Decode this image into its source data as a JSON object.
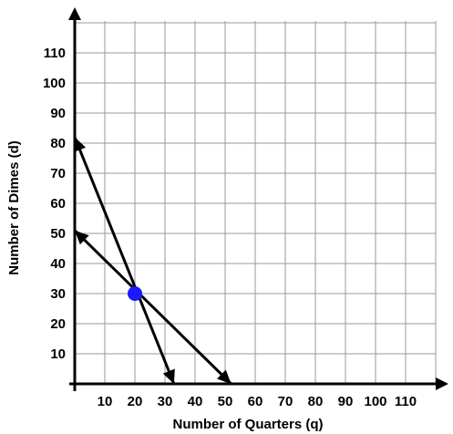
{
  "chart_data": {
    "type": "line",
    "title": "",
    "xlabel": "Number of Quarters (q)",
    "ylabel": "Number of Dimes (d)",
    "xlim": [
      0,
      120
    ],
    "ylim": [
      0,
      120
    ],
    "x_ticks": [
      10,
      20,
      30,
      40,
      50,
      60,
      70,
      80,
      90,
      100,
      110
    ],
    "y_ticks": [
      10,
      20,
      30,
      40,
      50,
      60,
      70,
      80,
      90,
      100,
      110
    ],
    "grid": true,
    "series": [
      {
        "x": [
          0,
          33
        ],
        "y": [
          82,
          0
        ]
      },
      {
        "x": [
          0,
          52
        ],
        "y": [
          51,
          0
        ]
      }
    ],
    "points": [
      {
        "x": 20,
        "y": 30
      }
    ],
    "colors": {
      "line": "#000000",
      "grid": "#999999",
      "point": "#1a1aff"
    }
  }
}
